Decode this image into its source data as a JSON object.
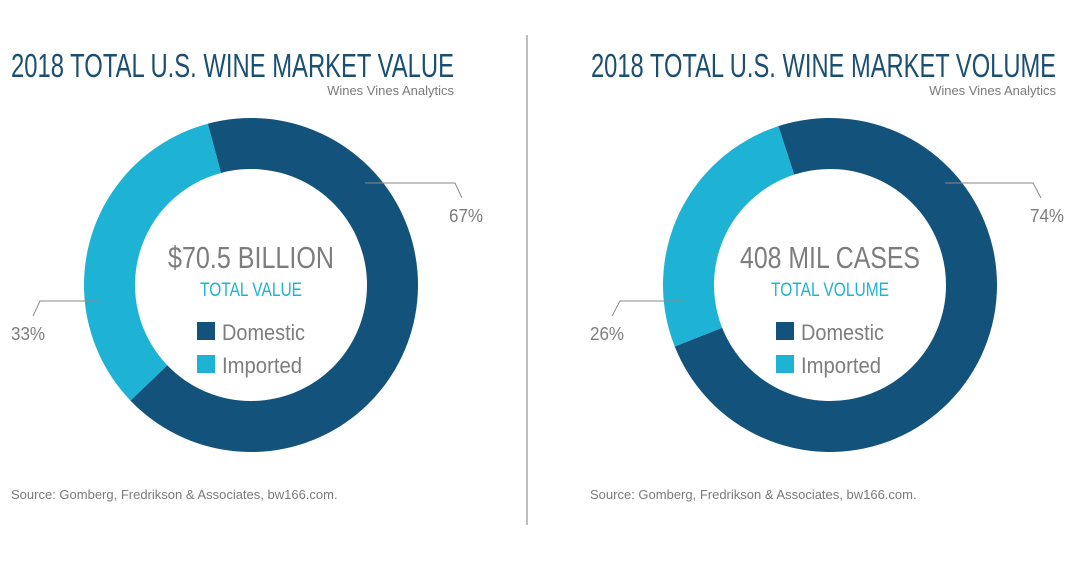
{
  "colors": {
    "domestic": "#13527a",
    "imported": "#1eb3d4",
    "title": "#1b4f72"
  },
  "chart_data": [
    {
      "type": "pie",
      "donut": true,
      "title": "2018 TOTAL U.S. WINE MARKET VALUE",
      "subtitle": "Wines Vines Analytics",
      "center_value": "$70.5 BILLION",
      "center_label": "TOTAL VALUE",
      "categories": [
        "Domestic",
        "Imported"
      ],
      "values": [
        67,
        33
      ],
      "data_labels": [
        "67%",
        "33%"
      ],
      "legend": "center",
      "source": "Source: Gomberg, Fredrikson & Associates, bw166.com."
    },
    {
      "type": "pie",
      "donut": true,
      "title": "2018 TOTAL U.S. WINE MARKET VOLUME",
      "subtitle": "Wines Vines Analytics",
      "center_value": "408 MIL CASES",
      "center_label": "TOTAL VOLUME",
      "categories": [
        "Domestic",
        "Imported"
      ],
      "values": [
        74,
        26
      ],
      "data_labels": [
        "74%",
        "26%"
      ],
      "legend": "center",
      "source": "Source: Gomberg, Fredrikson & Associates, bw166.com."
    }
  ]
}
